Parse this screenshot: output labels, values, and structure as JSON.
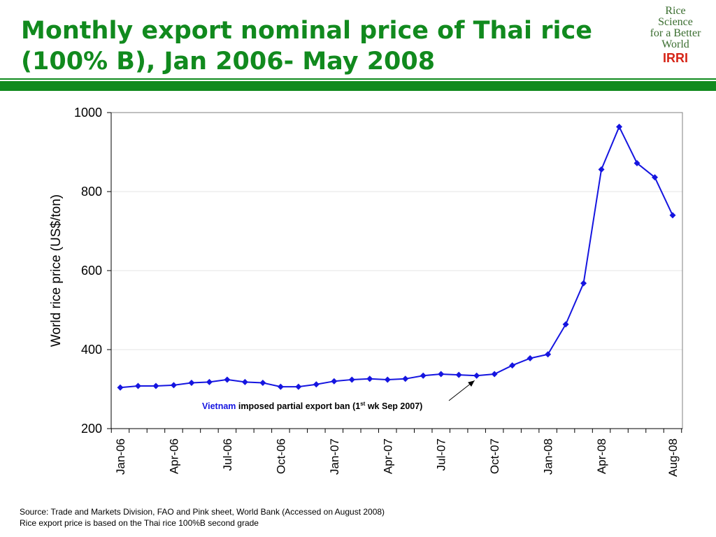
{
  "header": {
    "title_line1": "Monthly export nominal price of Thai rice",
    "title_line2": "(100% B), Jan 2006- May 2008"
  },
  "logo": {
    "line1": "Rice",
    "line2": "Science",
    "line3": "for a Better",
    "line4": "World",
    "org": "IRRI",
    "org_color": "#d62416"
  },
  "colors": {
    "title": "#118a1e",
    "series": "#1515e0",
    "annotation_highlight": "#1515e0"
  },
  "chart_data": {
    "type": "line",
    "ylabel": "World rice price (US$/ton)",
    "xlabel": "",
    "ylim": [
      200,
      1000
    ],
    "yticks": [
      200,
      400,
      600,
      800,
      1000
    ],
    "grid": "horizontal",
    "x_tick_labels": [
      "Jan-06",
      "Apr-06",
      "Jul-06",
      "Oct-06",
      "Jan-07",
      "Apr-07",
      "Jul-07",
      "Oct-07",
      "Jan-08",
      "Apr-08",
      "Aug-08"
    ],
    "x": [
      "Jan-06",
      "Feb-06",
      "Mar-06",
      "Apr-06",
      "May-06",
      "Jun-06",
      "Jul-06",
      "Aug-06",
      "Sep-06",
      "Oct-06",
      "Nov-06",
      "Dec-06",
      "Jan-07",
      "Feb-07",
      "Mar-07",
      "Apr-07",
      "May-07",
      "Jun-07",
      "Jul-07",
      "Aug-07",
      "Sep-07",
      "Oct-07",
      "Nov-07",
      "Dec-07",
      "Jan-08",
      "Feb-08",
      "Mar-08",
      "Apr-08",
      "May-08",
      "Jun-08",
      "Jul-08",
      "Aug-08"
    ],
    "series": [
      {
        "values": [
          304,
          308,
          308,
          310,
          316,
          318,
          324,
          318,
          316,
          306,
          306,
          312,
          320,
          324,
          326,
          324,
          326,
          334,
          338,
          336,
          334,
          338,
          360,
          378,
          388,
          464,
          568,
          856,
          964,
          872,
          836,
          740
        ]
      }
    ],
    "annotation": {
      "highlight": "Vietnam",
      "text_before_sup": " imposed partial export ban (1",
      "sup": "st",
      "text_after_sup": " wk Sep 2007)",
      "points_to": "Sep-07"
    }
  },
  "footer": {
    "line1": "Source: Trade and Markets Division, FAO and Pink sheet, World Bank (Accessed on August 2008)",
    "line2": "Rice export price is based on the Thai rice 100%B second grade"
  }
}
